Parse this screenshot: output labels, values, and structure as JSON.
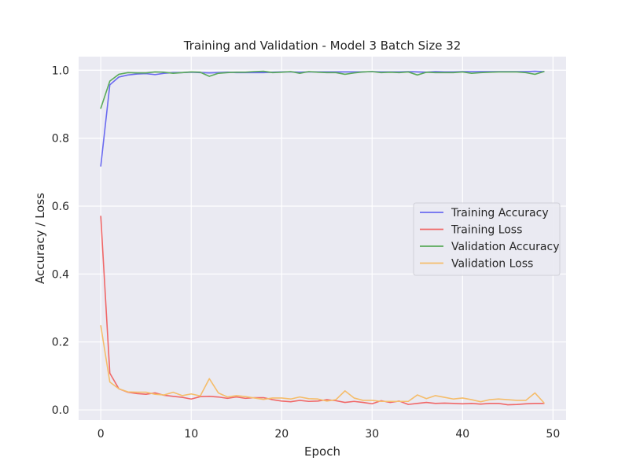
{
  "chart_data": {
    "type": "line",
    "title": "Training and Validation - Model 3 Batch Size 32",
    "xlabel": "Epoch",
    "ylabel": "Accuracy / Loss",
    "xlim": [
      -2.45,
      51.45
    ],
    "ylim": [
      -0.03,
      1.04
    ],
    "xticks": [
      0,
      10,
      20,
      30,
      40,
      50
    ],
    "yticks": [
      0.0,
      0.2,
      0.4,
      0.6,
      0.8,
      1.0
    ],
    "xtick_labels": [
      "0",
      "10",
      "20",
      "30",
      "40",
      "50"
    ],
    "ytick_labels": [
      "0.0",
      "0.2",
      "0.4",
      "0.6",
      "0.8",
      "1.0"
    ],
    "grid": true,
    "legend_position": "center-right",
    "x": [
      0,
      1,
      2,
      3,
      4,
      5,
      6,
      7,
      8,
      9,
      10,
      11,
      12,
      13,
      14,
      15,
      16,
      17,
      18,
      19,
      20,
      21,
      22,
      23,
      24,
      25,
      26,
      27,
      28,
      29,
      30,
      31,
      32,
      33,
      34,
      35,
      36,
      37,
      38,
      39,
      40,
      41,
      42,
      43,
      44,
      45,
      46,
      47,
      48,
      49
    ],
    "series": [
      {
        "name": "Training Accuracy",
        "color": "#6b6bf0",
        "values": [
          0.718,
          0.957,
          0.98,
          0.986,
          0.989,
          0.99,
          0.987,
          0.991,
          0.993,
          0.993,
          0.994,
          0.993,
          0.992,
          0.993,
          0.994,
          0.993,
          0.993,
          0.993,
          0.993,
          0.994,
          0.995,
          0.995,
          0.994,
          0.995,
          0.995,
          0.995,
          0.995,
          0.995,
          0.995,
          0.995,
          0.996,
          0.995,
          0.995,
          0.995,
          0.996,
          0.995,
          0.994,
          0.996,
          0.995,
          0.995,
          0.996,
          0.996,
          0.996,
          0.996,
          0.996,
          0.996,
          0.996,
          0.996,
          0.997,
          0.996
        ]
      },
      {
        "name": "Training Loss",
        "color": "#f06868",
        "values": [
          0.57,
          0.108,
          0.062,
          0.052,
          0.048,
          0.046,
          0.05,
          0.043,
          0.04,
          0.037,
          0.032,
          0.039,
          0.04,
          0.038,
          0.034,
          0.038,
          0.034,
          0.036,
          0.036,
          0.03,
          0.026,
          0.024,
          0.028,
          0.025,
          0.026,
          0.03,
          0.027,
          0.022,
          0.025,
          0.022,
          0.018,
          0.027,
          0.022,
          0.026,
          0.016,
          0.019,
          0.022,
          0.019,
          0.02,
          0.019,
          0.018,
          0.019,
          0.017,
          0.019,
          0.019,
          0.015,
          0.016,
          0.018,
          0.019,
          0.019
        ]
      },
      {
        "name": "Validation Accuracy",
        "color": "#5aaa5a",
        "values": [
          0.888,
          0.968,
          0.988,
          0.993,
          0.992,
          0.992,
          0.995,
          0.994,
          0.991,
          0.993,
          0.995,
          0.994,
          0.982,
          0.991,
          0.993,
          0.994,
          0.994,
          0.996,
          0.997,
          0.993,
          0.994,
          0.996,
          0.991,
          0.996,
          0.994,
          0.993,
          0.993,
          0.988,
          0.992,
          0.995,
          0.996,
          0.993,
          0.994,
          0.993,
          0.995,
          0.986,
          0.994,
          0.993,
          0.993,
          0.993,
          0.995,
          0.991,
          0.993,
          0.994,
          0.995,
          0.995,
          0.995,
          0.993,
          0.988,
          0.996
        ]
      },
      {
        "name": "Validation Loss",
        "color": "#f5bd6b",
        "values": [
          0.248,
          0.082,
          0.062,
          0.053,
          0.052,
          0.052,
          0.046,
          0.044,
          0.052,
          0.042,
          0.047,
          0.041,
          0.092,
          0.05,
          0.038,
          0.042,
          0.039,
          0.035,
          0.031,
          0.035,
          0.035,
          0.032,
          0.038,
          0.033,
          0.032,
          0.026,
          0.03,
          0.056,
          0.035,
          0.028,
          0.028,
          0.025,
          0.025,
          0.025,
          0.025,
          0.044,
          0.033,
          0.042,
          0.037,
          0.032,
          0.035,
          0.03,
          0.024,
          0.03,
          0.032,
          0.03,
          0.028,
          0.028,
          0.05,
          0.021
        ]
      }
    ]
  }
}
